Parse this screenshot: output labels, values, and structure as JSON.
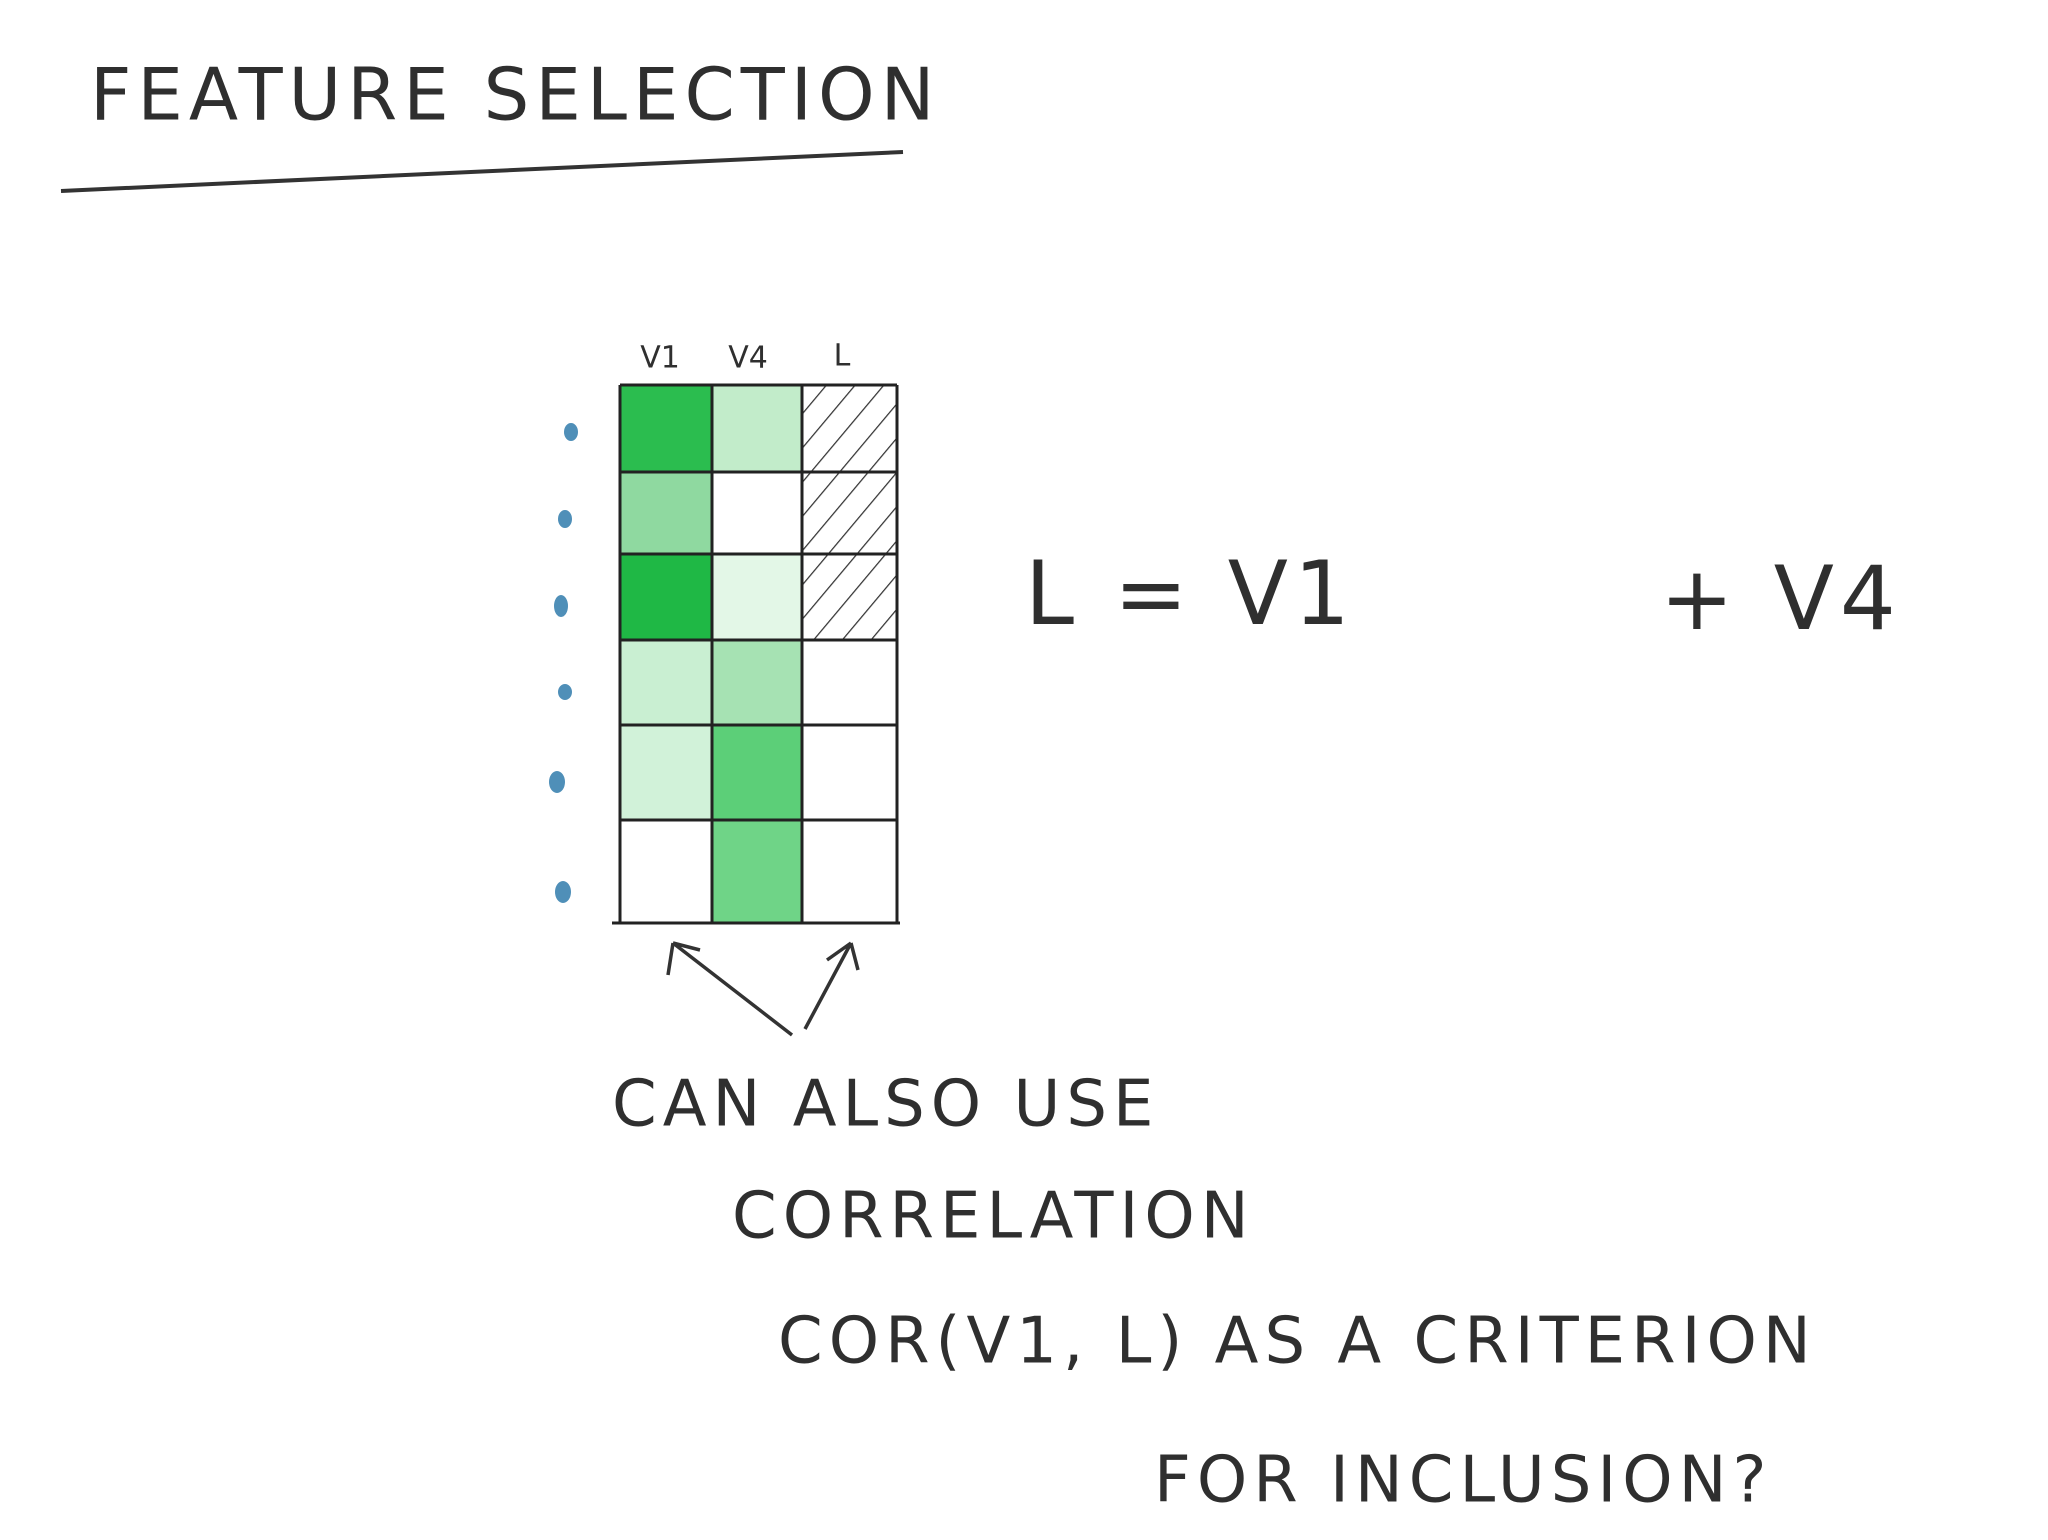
{
  "header": {
    "title": "FEATURE SELECTION"
  },
  "table": {
    "columns": [
      "V1",
      "V4",
      "L"
    ]
  },
  "equation": {
    "left": "L = V1",
    "right": "+ V4"
  },
  "note": {
    "lines": [
      "CAN ALSO USE",
      "CORRELATION",
      "COR(V1, L) AS A CRITERION",
      "FOR INCLUSION?"
    ]
  }
}
